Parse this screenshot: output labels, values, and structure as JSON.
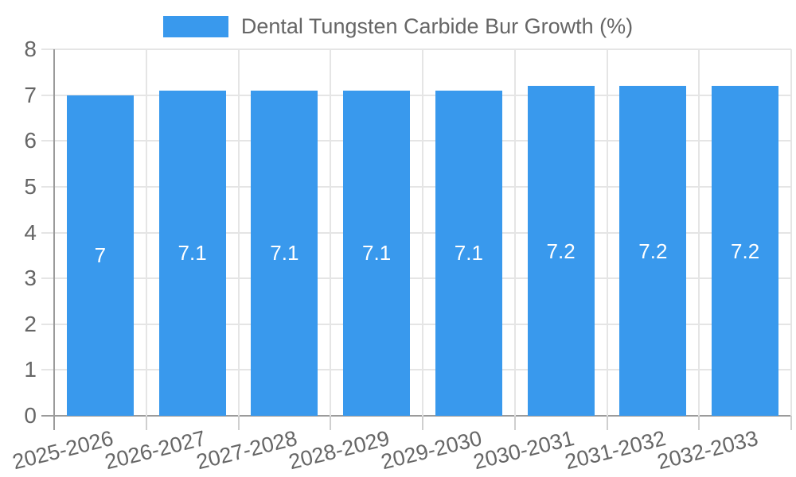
{
  "legend": {
    "label": "Dental Tungsten Carbide Bur Growth (%)"
  },
  "colors": {
    "bar": "#3999ED",
    "grid": "#e5e5e5",
    "axis": "#9b9b9b",
    "subtick": "#cfcfcf",
    "tick_text": "#666666",
    "value_text": "#ffffff",
    "background": "#ffffff"
  },
  "chart_data": {
    "type": "bar",
    "title": "Dental Tungsten Carbide Bur Growth (%)",
    "categories": [
      "2025-2026",
      "2026-2027",
      "2027-2028",
      "2028-2029",
      "2029-2030",
      "2030-2031",
      "2031-2032",
      "2032-2033"
    ],
    "values": [
      7,
      7.1,
      7.1,
      7.1,
      7.1,
      7.2,
      7.2,
      7.2
    ],
    "value_labels": [
      "7",
      "7.1",
      "7.1",
      "7.1",
      "7.1",
      "7.2",
      "7.2",
      "7.2"
    ],
    "xlabel": "",
    "ylabel": "",
    "ylim": [
      0,
      8
    ],
    "yticks": [
      0,
      1,
      2,
      3,
      4,
      5,
      6,
      7,
      8
    ],
    "grid": true,
    "legend_position": "top",
    "bar_label_position": "center"
  }
}
